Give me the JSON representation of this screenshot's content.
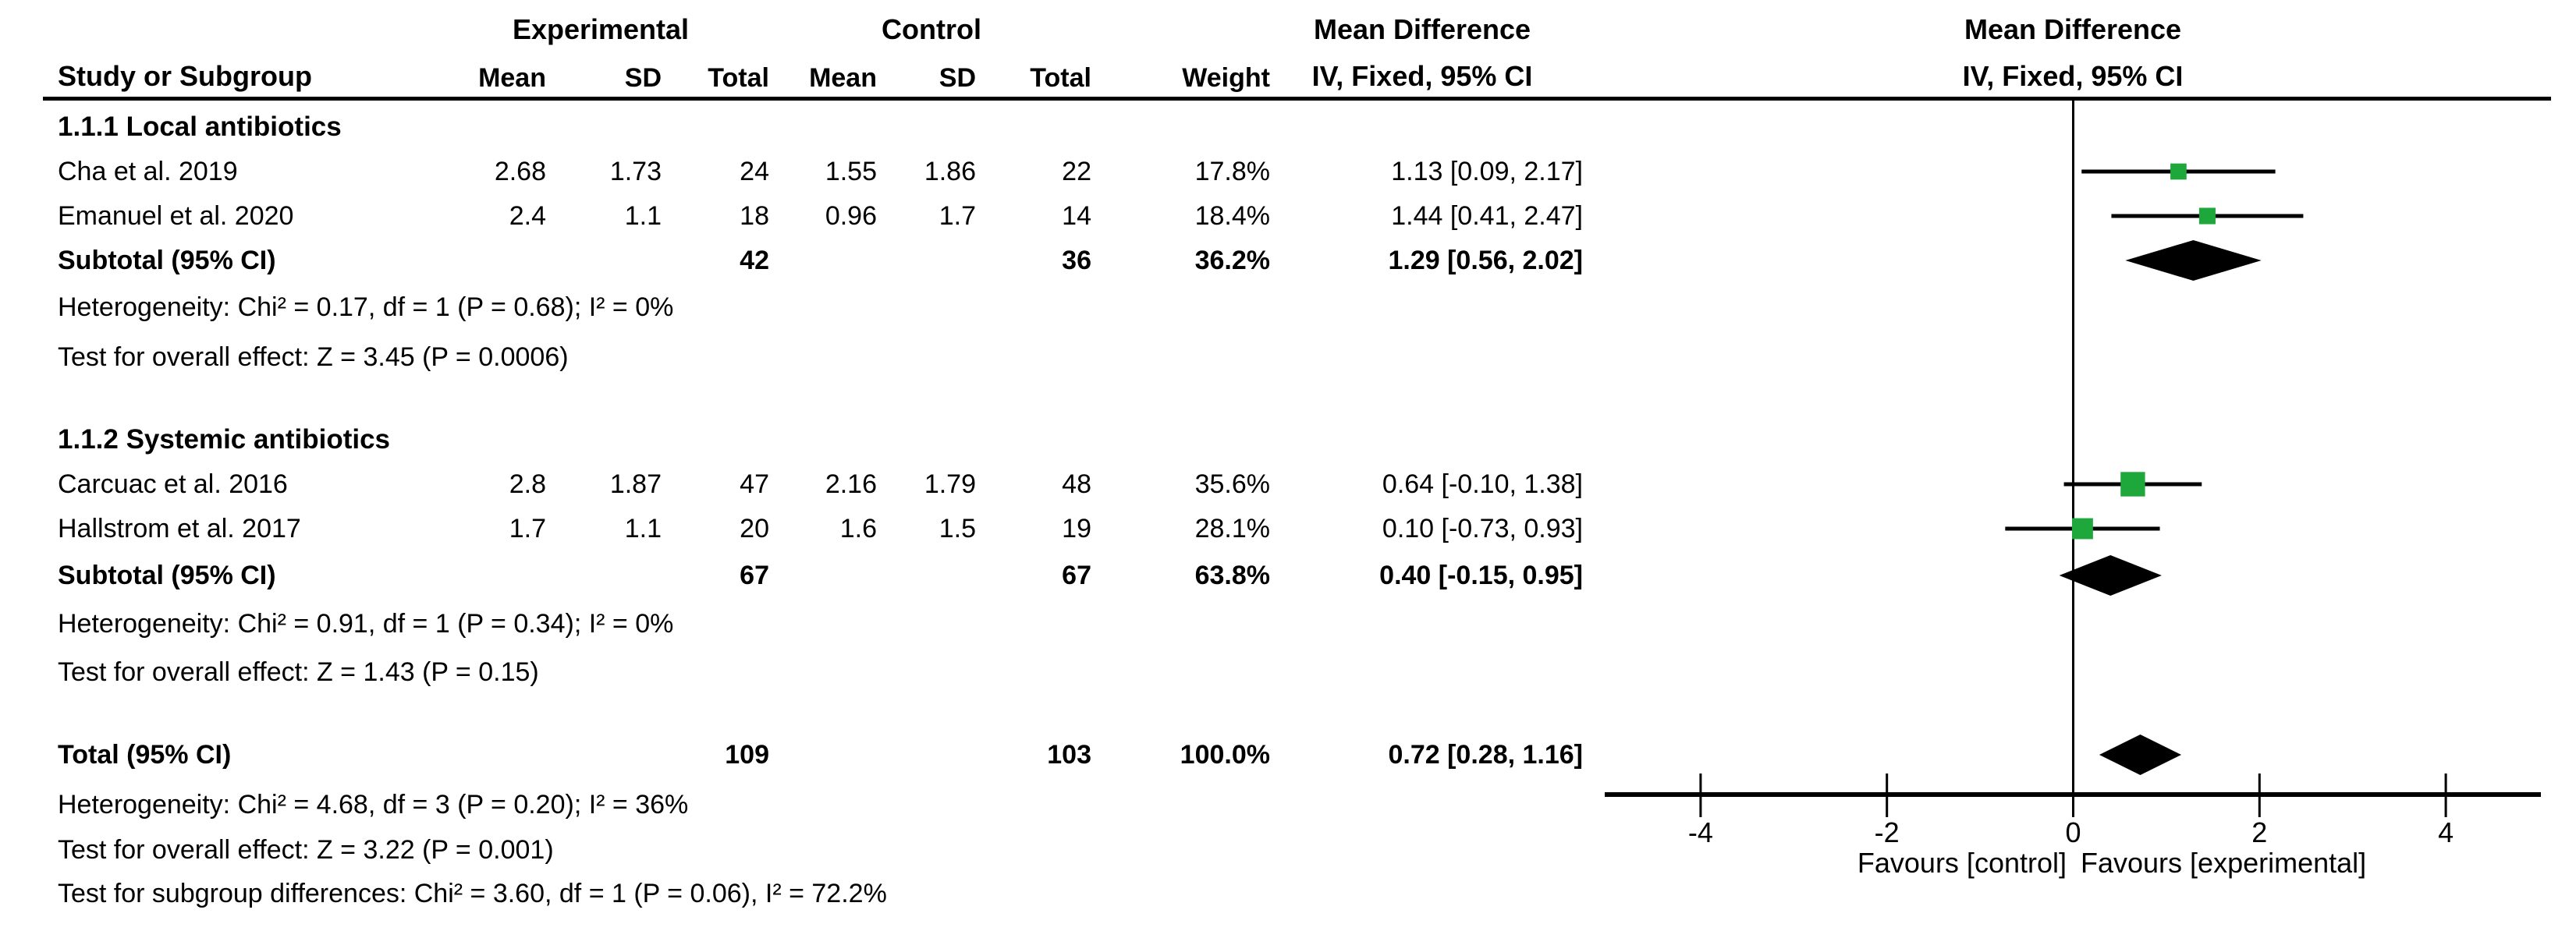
{
  "headers": {
    "experimental_group": "Experimental",
    "control_group": "Control",
    "md_table_line1": "Mean Difference",
    "md_plot_line1": "Mean Difference",
    "md_plot_line2": "IV, Fixed, 95% CI"
  },
  "columns": {
    "study": "Study or Subgroup",
    "mean": "Mean",
    "sd": "SD",
    "total": "Total",
    "weight": "Weight",
    "ci": "IV, Fixed, 95% CI"
  },
  "plot": {
    "axis_ticks": [
      "-4",
      "-2",
      "0",
      "2",
      "4"
    ],
    "axis_tick_values": [
      -4,
      -2,
      0,
      2,
      4
    ],
    "favours_left": "Favours [control]",
    "favours_right": "Favours [experimental]",
    "marker_color": "#1ea83c",
    "line_color": "#000000",
    "diamond_color": "#000000"
  },
  "chart_data": {
    "type": "forest",
    "effect_measure": "Mean Difference",
    "model": "IV, Fixed, 95% CI",
    "xlim": [
      -5,
      5
    ],
    "subgroups": [
      {
        "label": "1.1.1 Local antibiotics",
        "studies": [
          {
            "study": "Cha et al. 2019",
            "mean_e": "2.68",
            "sd_e": "1.73",
            "total_e": "24",
            "mean_c": "1.55",
            "sd_c": "1.86",
            "total_c": "22",
            "weight": "17.8%",
            "weight_pct": 17.8,
            "ci_text": "1.13 [0.09, 2.17]",
            "est": 1.13,
            "lo": 0.09,
            "hi": 2.17
          },
          {
            "study": "Emanuel et al. 2020",
            "mean_e": "2.4",
            "sd_e": "1.1",
            "total_e": "18",
            "mean_c": "0.96",
            "sd_c": "1.7",
            "total_c": "14",
            "weight": "18.4%",
            "weight_pct": 18.4,
            "ci_text": "1.44 [0.41, 2.47]",
            "est": 1.44,
            "lo": 0.41,
            "hi": 2.47
          }
        ],
        "subtotal": {
          "label": "Subtotal (95% CI)",
          "total_e": "42",
          "total_c": "36",
          "weight": "36.2%",
          "ci_text": "1.29 [0.56, 2.02]",
          "est": 1.29,
          "lo": 0.56,
          "hi": 2.02
        },
        "heterogeneity": "Heterogeneity: Chi² = 0.17, df = 1 (P = 0.68); I² = 0%",
        "overall_effect": "Test for overall effect: Z = 3.45 (P = 0.0006)"
      },
      {
        "label": "1.1.2 Systemic antibiotics",
        "studies": [
          {
            "study": "Carcuac et al. 2016",
            "mean_e": "2.8",
            "sd_e": "1.87",
            "total_e": "47",
            "mean_c": "2.16",
            "sd_c": "1.79",
            "total_c": "48",
            "weight": "35.6%",
            "weight_pct": 35.6,
            "ci_text": "0.64 [-0.10, 1.38]",
            "est": 0.64,
            "lo": -0.1,
            "hi": 1.38
          },
          {
            "study": "Hallstrom et al. 2017",
            "mean_e": "1.7",
            "sd_e": "1.1",
            "total_e": "20",
            "mean_c": "1.6",
            "sd_c": "1.5",
            "total_c": "19",
            "weight": "28.1%",
            "weight_pct": 28.1,
            "ci_text": "0.10 [-0.73, 0.93]",
            "est": 0.1,
            "lo": -0.73,
            "hi": 0.93
          }
        ],
        "subtotal": {
          "label": "Subtotal (95% CI)",
          "total_e": "67",
          "total_c": "67",
          "weight": "63.8%",
          "ci_text": "0.40 [-0.15, 0.95]",
          "est": 0.4,
          "lo": -0.15,
          "hi": 0.95
        },
        "heterogeneity": "Heterogeneity: Chi² = 0.91, df = 1 (P = 0.34); I² = 0%",
        "overall_effect": "Test for overall effect: Z = 1.43 (P = 0.15)"
      }
    ],
    "total": {
      "label": "Total (95% CI)",
      "total_e": "109",
      "total_c": "103",
      "weight": "100.0%",
      "ci_text": "0.72 [0.28, 1.16]",
      "est": 0.72,
      "lo": 0.28,
      "hi": 1.16
    },
    "total_heterogeneity": "Heterogeneity: Chi² = 4.68, df = 3 (P = 0.20); I² = 36%",
    "total_overall_effect": "Test for overall effect: Z = 3.22 (P = 0.001)",
    "subgroup_differences": "Test for subgroup differences: Chi² = 3.60, df = 1 (P = 0.06), I² = 72.2%"
  }
}
